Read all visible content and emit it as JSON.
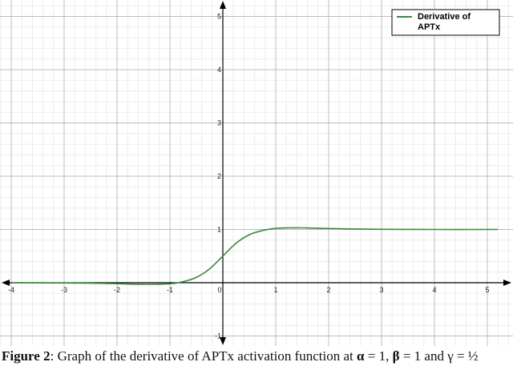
{
  "chart_data": {
    "type": "line",
    "x_range": [
      -4,
      5.2
    ],
    "y_range": [
      -1.2,
      5.2
    ],
    "grid": true,
    "legend_position": "top-right",
    "x_tick_labels": [
      "-4",
      "-3",
      "-2",
      "-1",
      "0",
      "1",
      "2",
      "3",
      "4",
      "5"
    ],
    "y_tick_labels": [
      "-1",
      "1",
      "2",
      "3",
      "4",
      "5"
    ],
    "series": [
      {
        "name_lines": [
          "Derivative of",
          "APTx"
        ],
        "color": "#3a8a3a",
        "x": [
          -4,
          -3,
          -2.5,
          -2,
          -1.5,
          -1,
          -0.75,
          -0.5,
          -0.25,
          0,
          0.25,
          0.5,
          0.75,
          1,
          1.25,
          1.5,
          2,
          2.5,
          3,
          4,
          5,
          5.2
        ],
        "y": [
          -0.001,
          -0.004,
          -0.009,
          -0.018,
          -0.03,
          -0.02,
          0.02,
          0.1,
          0.26,
          0.5,
          0.74,
          0.9,
          0.98,
          1.02,
          1.03,
          1.03,
          1.018,
          1.008,
          1.003,
          1.0,
          1.0,
          1.0
        ]
      }
    ]
  },
  "caption": {
    "label": "Figure 2",
    "text": ": Graph of the derivative of  APTx activation function at ",
    "alpha": "α",
    "alpha_val": " = 1, ",
    "beta": "β",
    "beta_val": " = 1 and γ = ½"
  }
}
